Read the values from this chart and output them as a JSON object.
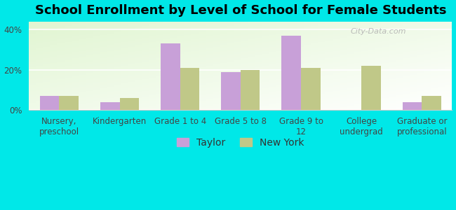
{
  "title": "School Enrollment by Level of School for Female Students",
  "categories": [
    "Nursery,\npreschool",
    "Kindergarten",
    "Grade 1 to 4",
    "Grade 5 to 8",
    "Grade 9 to\n12",
    "College\nundergrad",
    "Graduate or\nprofessional"
  ],
  "taylor_values": [
    7,
    4,
    33,
    19,
    37,
    0,
    4
  ],
  "newyork_values": [
    7,
    6,
    21,
    20,
    21,
    22,
    7
  ],
  "taylor_color": "#c8a0d8",
  "newyork_color": "#c0c888",
  "background_outer": "#00e8e8",
  "yticks": [
    0,
    20,
    40
  ],
  "ylim": [
    0,
    44
  ],
  "legend_labels": [
    "Taylor",
    "New York"
  ],
  "title_fontsize": 13,
  "tick_fontsize": 8.5,
  "legend_fontsize": 10,
  "bar_width": 0.32,
  "watermark": "City-Data.com"
}
